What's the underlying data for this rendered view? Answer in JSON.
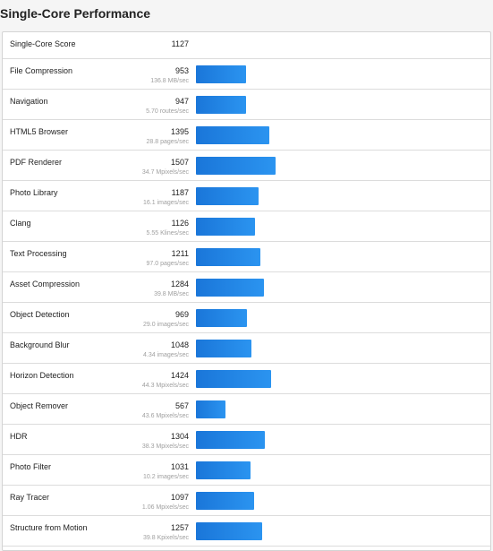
{
  "title": "Single-Core Performance",
  "summary": {
    "label": "Single-Core Score",
    "score": "1127"
  },
  "bar_max_score": 1507,
  "benchmarks": [
    {
      "name": "File Compression",
      "score": "953",
      "desc": "136.8 MB/sec"
    },
    {
      "name": "Navigation",
      "score": "947",
      "desc": "5.70 routes/sec"
    },
    {
      "name": "HTML5 Browser",
      "score": "1395",
      "desc": "28.8 pages/sec"
    },
    {
      "name": "PDF Renderer",
      "score": "1507",
      "desc": "34.7 Mpixels/sec"
    },
    {
      "name": "Photo Library",
      "score": "1187",
      "desc": "16.1 images/sec"
    },
    {
      "name": "Clang",
      "score": "1126",
      "desc": "5.55 Klines/sec"
    },
    {
      "name": "Text Processing",
      "score": "1211",
      "desc": "97.0 pages/sec"
    },
    {
      "name": "Asset Compression",
      "score": "1284",
      "desc": "39.8 MB/sec"
    },
    {
      "name": "Object Detection",
      "score": "969",
      "desc": "29.0 images/sec"
    },
    {
      "name": "Background Blur",
      "score": "1048",
      "desc": "4.34 images/sec"
    },
    {
      "name": "Horizon Detection",
      "score": "1424",
      "desc": "44.3 Mpixels/sec"
    },
    {
      "name": "Object Remover",
      "score": "567",
      "desc": "43.6 Mpixels/sec"
    },
    {
      "name": "HDR",
      "score": "1304",
      "desc": "38.3 Mpixels/sec"
    },
    {
      "name": "Photo Filter",
      "score": "1031",
      "desc": "10.2 images/sec"
    },
    {
      "name": "Ray Tracer",
      "score": "1097",
      "desc": "1.06 Mpixels/sec"
    },
    {
      "name": "Structure from Motion",
      "score": "1257",
      "desc": "39.8 Kpixels/sec"
    }
  ]
}
